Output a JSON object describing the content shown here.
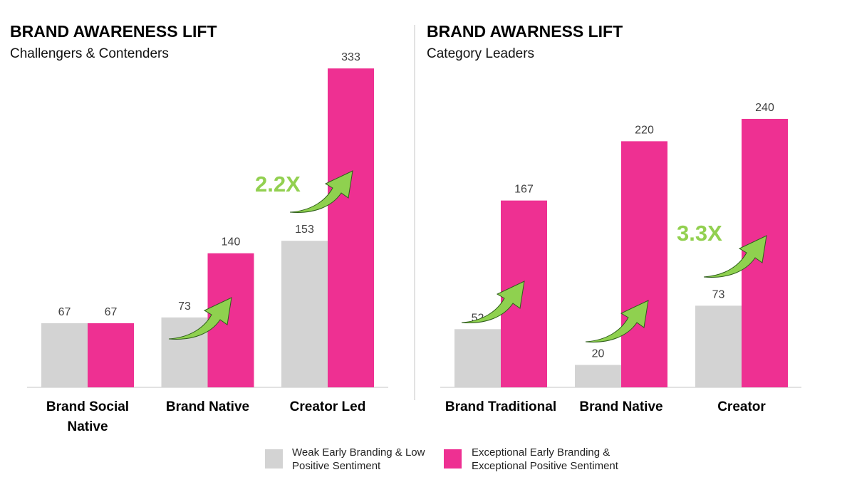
{
  "chart_data": [
    {
      "type": "bar",
      "title": "BRAND AWARENESS LIFT",
      "subtitle": "Challengers & Contenders",
      "categories": [
        "Brand Social Native",
        "Brand Native",
        "Creator Led"
      ],
      "series": [
        {
          "name": "Weak Early Branding & Low Positive Sentiment",
          "color": "#d3d3d3",
          "values": [
            67,
            73,
            153
          ]
        },
        {
          "name": "Exceptional Early Branding & Exceptional Positive Sentiment",
          "color": "#ee3092",
          "values": [
            67,
            140,
            333
          ]
        }
      ],
      "annotations": [
        "2.2X"
      ]
    },
    {
      "type": "bar",
      "title": "BRAND AWARNESS LIFT",
      "subtitle": "Category Leaders",
      "categories": [
        "Brand Traditional",
        "Brand Native",
        "Creator"
      ],
      "series": [
        {
          "color": "#d3d3d3",
          "values": [
            52,
            20,
            73
          ]
        },
        {
          "color": "#ee3092",
          "values": [
            167,
            220,
            240
          ]
        }
      ],
      "annotations": [
        "3.3X"
      ]
    }
  ]
}
